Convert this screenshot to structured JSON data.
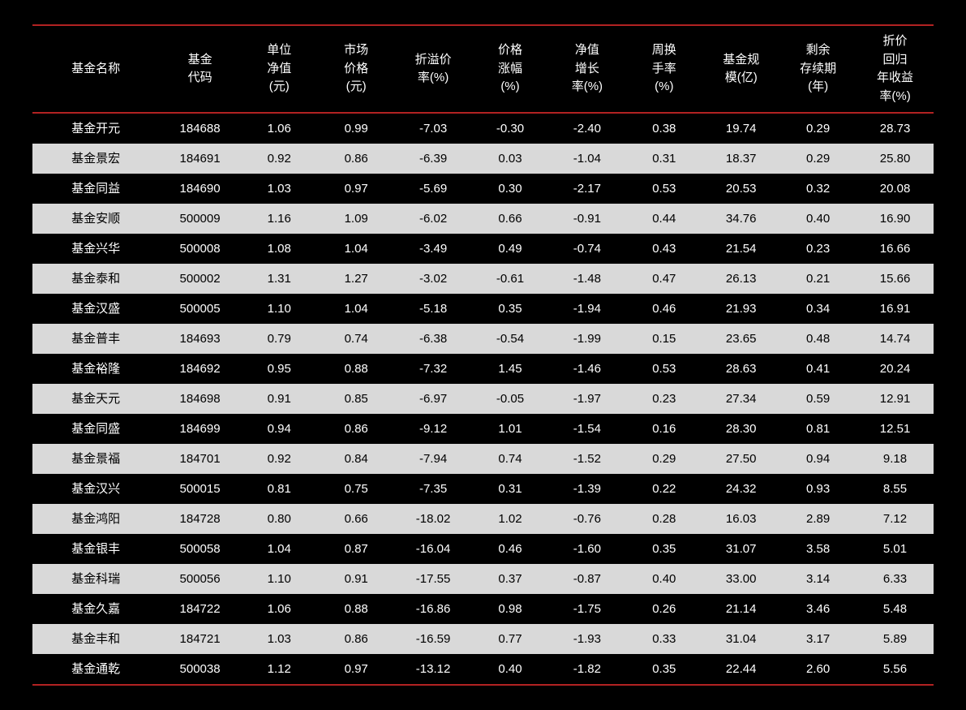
{
  "table": {
    "type": "table",
    "background_color": "#000000",
    "row_stripe_colors": [
      "#000000",
      "#d9d9d9"
    ],
    "rule_color": "#b22222",
    "text_color_dark_row": "#ffffff",
    "text_color_light_row": "#000000",
    "font_size_pt": 11,
    "columns": [
      {
        "key": "name",
        "label": "基金名称",
        "width": "14%"
      },
      {
        "key": "code",
        "label": "基金\n代码",
        "width": "9%"
      },
      {
        "key": "nav",
        "label": "单位\n净值\n(元)",
        "width": "8.5%"
      },
      {
        "key": "price",
        "label": "市场\n价格\n(元)",
        "width": "8.5%"
      },
      {
        "key": "premium",
        "label": "折溢价\n率(%)",
        "width": "8.5%"
      },
      {
        "key": "priceChg",
        "label": "价格\n涨幅\n(%)",
        "width": "8.5%"
      },
      {
        "key": "navChg",
        "label": "净值\n增长\n率(%)",
        "width": "8.5%"
      },
      {
        "key": "turnover",
        "label": "周换\n手率\n(%)",
        "width": "8.5%"
      },
      {
        "key": "size",
        "label": "基金规\n模(亿)",
        "width": "8.5%"
      },
      {
        "key": "duration",
        "label": "剩余\n存续期\n(年)",
        "width": "8.5%"
      },
      {
        "key": "annualized",
        "label": "折价\n回归\n年收益\n率(%)",
        "width": "8.5%"
      }
    ],
    "rows": [
      [
        "基金开元",
        "184688",
        "1.06",
        "0.99",
        "-7.03",
        "-0.30",
        "-2.40",
        "0.38",
        "19.74",
        "0.29",
        "28.73"
      ],
      [
        "基金景宏",
        "184691",
        "0.92",
        "0.86",
        "-6.39",
        "0.03",
        "-1.04",
        "0.31",
        "18.37",
        "0.29",
        "25.80"
      ],
      [
        "基金同益",
        "184690",
        "1.03",
        "0.97",
        "-5.69",
        "0.30",
        "-2.17",
        "0.53",
        "20.53",
        "0.32",
        "20.08"
      ],
      [
        "基金安顺",
        "500009",
        "1.16",
        "1.09",
        "-6.02",
        "0.66",
        "-0.91",
        "0.44",
        "34.76",
        "0.40",
        "16.90"
      ],
      [
        "基金兴华",
        "500008",
        "1.08",
        "1.04",
        "-3.49",
        "0.49",
        "-0.74",
        "0.43",
        "21.54",
        "0.23",
        "16.66"
      ],
      [
        "基金泰和",
        "500002",
        "1.31",
        "1.27",
        "-3.02",
        "-0.61",
        "-1.48",
        "0.47",
        "26.13",
        "0.21",
        "15.66"
      ],
      [
        "基金汉盛",
        "500005",
        "1.10",
        "1.04",
        "-5.18",
        "0.35",
        "-1.94",
        "0.46",
        "21.93",
        "0.34",
        "16.91"
      ],
      [
        "基金普丰",
        "184693",
        "0.79",
        "0.74",
        "-6.38",
        "-0.54",
        "-1.99",
        "0.15",
        "23.65",
        "0.48",
        "14.74"
      ],
      [
        "基金裕隆",
        "184692",
        "0.95",
        "0.88",
        "-7.32",
        "1.45",
        "-1.46",
        "0.53",
        "28.63",
        "0.41",
        "20.24"
      ],
      [
        "基金天元",
        "184698",
        "0.91",
        "0.85",
        "-6.97",
        "-0.05",
        "-1.97",
        "0.23",
        "27.34",
        "0.59",
        "12.91"
      ],
      [
        "基金同盛",
        "184699",
        "0.94",
        "0.86",
        "-9.12",
        "1.01",
        "-1.54",
        "0.16",
        "28.30",
        "0.81",
        "12.51"
      ],
      [
        "基金景福",
        "184701",
        "0.92",
        "0.84",
        "-7.94",
        "0.74",
        "-1.52",
        "0.29",
        "27.50",
        "0.94",
        "9.18"
      ],
      [
        "基金汉兴",
        "500015",
        "0.81",
        "0.75",
        "-7.35",
        "0.31",
        "-1.39",
        "0.22",
        "24.32",
        "0.93",
        "8.55"
      ],
      [
        "基金鸿阳",
        "184728",
        "0.80",
        "0.66",
        "-18.02",
        "1.02",
        "-0.76",
        "0.28",
        "16.03",
        "2.89",
        "7.12"
      ],
      [
        "基金银丰",
        "500058",
        "1.04",
        "0.87",
        "-16.04",
        "0.46",
        "-1.60",
        "0.35",
        "31.07",
        "3.58",
        "5.01"
      ],
      [
        "基金科瑞",
        "500056",
        "1.10",
        "0.91",
        "-17.55",
        "0.37",
        "-0.87",
        "0.40",
        "33.00",
        "3.14",
        "6.33"
      ],
      [
        "基金久嘉",
        "184722",
        "1.06",
        "0.88",
        "-16.86",
        "0.98",
        "-1.75",
        "0.26",
        "21.14",
        "3.46",
        "5.48"
      ],
      [
        "基金丰和",
        "184721",
        "1.03",
        "0.86",
        "-16.59",
        "0.77",
        "-1.93",
        "0.33",
        "31.04",
        "3.17",
        "5.89"
      ],
      [
        "基金通乾",
        "500038",
        "1.12",
        "0.97",
        "-13.12",
        "0.40",
        "-1.82",
        "0.35",
        "22.44",
        "2.60",
        "5.56"
      ]
    ]
  }
}
